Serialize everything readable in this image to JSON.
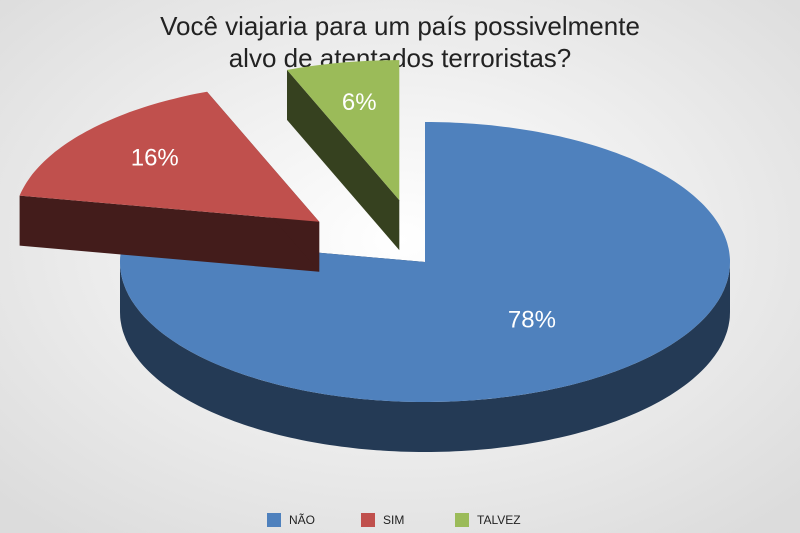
{
  "chart_data": {
    "type": "pie3d",
    "title": [
      "Você viajaria para um país possivelmente",
      "alvo de atentados terroristas?"
    ],
    "categories": [
      "NÃO",
      "SIM",
      "TALVEZ"
    ],
    "values": [
      78,
      16,
      6
    ],
    "value_labels": [
      "78%",
      "16%",
      "6%"
    ],
    "colors": [
      "#4f81bd",
      "#c0504d",
      "#9bbb59"
    ]
  }
}
